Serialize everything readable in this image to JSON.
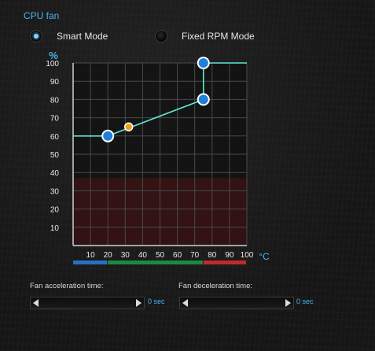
{
  "section_title": "CPU fan",
  "modes": [
    {
      "label": "Smart Mode",
      "selected": true
    },
    {
      "label": "Fixed RPM Mode",
      "selected": false
    }
  ],
  "chart_data": {
    "type": "line",
    "ylabel": "%",
    "xunit": "°C",
    "xlim": [
      0,
      100
    ],
    "ylim": [
      0,
      100
    ],
    "xticks": [
      "10",
      "20",
      "30",
      "40",
      "50",
      "60",
      "70",
      "80",
      "90",
      "100"
    ],
    "yticks": [
      "10",
      "20",
      "30",
      "40",
      "50",
      "60",
      "70",
      "80",
      "90",
      "100"
    ],
    "grid": true,
    "curve": [
      {
        "x": 0,
        "y": 60
      },
      {
        "x": 20,
        "y": 60
      },
      {
        "x": 75,
        "y": 80
      },
      {
        "x": 75,
        "y": 100
      },
      {
        "x": 100,
        "y": 100
      }
    ],
    "control_points": [
      {
        "x": 20,
        "y": 60,
        "color": "#1f7fd9"
      },
      {
        "x": 75,
        "y": 80,
        "color": "#1f7fd9"
      },
      {
        "x": 75,
        "y": 100,
        "color": "#1f7fd9"
      }
    ],
    "current_point": {
      "x": 32,
      "y": 65,
      "color": "#f0a020"
    },
    "danger_zone_max_y": 37,
    "temperature_zones": [
      {
        "from": 0,
        "to": 20,
        "color": "#2a6fc0"
      },
      {
        "from": 20,
        "to": 75,
        "color": "#1b8a44"
      },
      {
        "from": 75,
        "to": 100,
        "color": "#c02a2a"
      }
    ]
  },
  "acceleration": {
    "label": "Fan acceleration time:",
    "value": "0 sec"
  },
  "deceleration": {
    "label": "Fan deceleration time:",
    "value": "0 sec"
  }
}
